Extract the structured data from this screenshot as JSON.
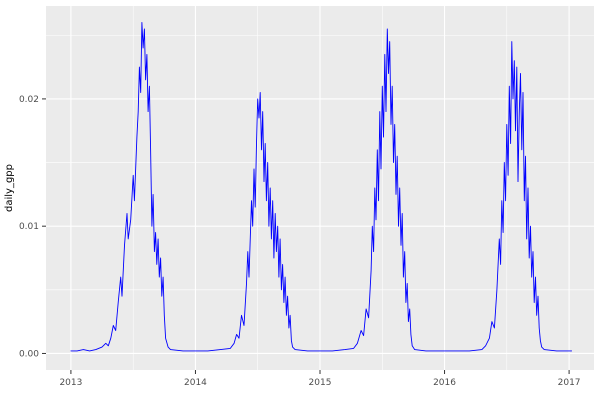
{
  "chart_data": {
    "type": "line",
    "title": "",
    "xlabel": "",
    "ylabel": "daily_gpp",
    "line_color": "#0000ff",
    "panel_bg": "#ebebeb",
    "grid_color": "#ffffff",
    "tick_color": "#333333",
    "label_color": "#4d4d4d",
    "legend": "none",
    "xlim": [
      2012.8,
      2017.2
    ],
    "ylim": [
      -0.0013,
      0.0273
    ],
    "x_ticks": [
      2013,
      2014,
      2015,
      2016,
      2017
    ],
    "x_tick_labels": [
      "2013",
      "2014",
      "2015",
      "2016",
      "2017"
    ],
    "x_minor": [
      2013.5,
      2014.5,
      2015.5,
      2016.5
    ],
    "y_ticks": [
      0.0,
      0.01,
      0.02
    ],
    "y_tick_labels": [
      "0.00",
      "0.01",
      "0.02"
    ],
    "y_minor": [
      0.005,
      0.015,
      0.025
    ],
    "series": [
      {
        "name": "daily_gpp",
        "points": [
          [
            2013.0,
            0.0002
          ],
          [
            2013.05,
            0.0002
          ],
          [
            2013.1,
            0.0003
          ],
          [
            2013.15,
            0.0002
          ],
          [
            2013.2,
            0.0003
          ],
          [
            2013.25,
            0.0005
          ],
          [
            2013.28,
            0.0008
          ],
          [
            2013.3,
            0.0006
          ],
          [
            2013.32,
            0.0012
          ],
          [
            2013.34,
            0.0022
          ],
          [
            2013.36,
            0.0018
          ],
          [
            2013.38,
            0.004
          ],
          [
            2013.4,
            0.006
          ],
          [
            2013.41,
            0.0045
          ],
          [
            2013.43,
            0.0085
          ],
          [
            2013.45,
            0.011
          ],
          [
            2013.46,
            0.009
          ],
          [
            2013.48,
            0.0105
          ],
          [
            2013.5,
            0.014
          ],
          [
            2013.51,
            0.012
          ],
          [
            2013.53,
            0.017
          ],
          [
            2013.54,
            0.019
          ],
          [
            2013.55,
            0.0225
          ],
          [
            2013.56,
            0.0205
          ],
          [
            2013.57,
            0.026
          ],
          [
            2013.58,
            0.024
          ],
          [
            2013.59,
            0.0255
          ],
          [
            2013.6,
            0.0215
          ],
          [
            2013.61,
            0.0235
          ],
          [
            2013.62,
            0.019
          ],
          [
            2013.63,
            0.021
          ],
          [
            2013.64,
            0.016
          ],
          [
            2013.65,
            0.01
          ],
          [
            2013.66,
            0.0125
          ],
          [
            2013.67,
            0.008
          ],
          [
            2013.68,
            0.0095
          ],
          [
            2013.69,
            0.007
          ],
          [
            2013.7,
            0.009
          ],
          [
            2013.71,
            0.006
          ],
          [
            2013.72,
            0.0075
          ],
          [
            2013.73,
            0.0045
          ],
          [
            2013.74,
            0.006
          ],
          [
            2013.75,
            0.003
          ],
          [
            2013.76,
            0.0012
          ],
          [
            2013.78,
            0.0005
          ],
          [
            2013.8,
            0.0003
          ],
          [
            2013.9,
            0.0002
          ],
          [
            2014.0,
            0.0002
          ],
          [
            2014.1,
            0.0002
          ],
          [
            2014.2,
            0.0003
          ],
          [
            2014.28,
            0.0004
          ],
          [
            2014.31,
            0.0008
          ],
          [
            2014.33,
            0.0015
          ],
          [
            2014.35,
            0.0012
          ],
          [
            2014.37,
            0.003
          ],
          [
            2014.39,
            0.0022
          ],
          [
            2014.41,
            0.0055
          ],
          [
            2014.42,
            0.008
          ],
          [
            2014.43,
            0.006
          ],
          [
            2014.45,
            0.012
          ],
          [
            2014.46,
            0.01
          ],
          [
            2014.47,
            0.0145
          ],
          [
            2014.48,
            0.0115
          ],
          [
            2014.49,
            0.0165
          ],
          [
            2014.5,
            0.02
          ],
          [
            2014.51,
            0.0185
          ],
          [
            2014.52,
            0.0205
          ],
          [
            2014.53,
            0.016
          ],
          [
            2014.54,
            0.019
          ],
          [
            2014.55,
            0.0135
          ],
          [
            2014.56,
            0.0165
          ],
          [
            2014.57,
            0.012
          ],
          [
            2014.58,
            0.015
          ],
          [
            2014.59,
            0.01
          ],
          [
            2014.6,
            0.013
          ],
          [
            2014.61,
            0.009
          ],
          [
            2014.62,
            0.012
          ],
          [
            2014.63,
            0.0075
          ],
          [
            2014.64,
            0.011
          ],
          [
            2014.65,
            0.008
          ],
          [
            2014.66,
            0.01
          ],
          [
            2014.67,
            0.006
          ],
          [
            2014.68,
            0.009
          ],
          [
            2014.69,
            0.005
          ],
          [
            2014.7,
            0.007
          ],
          [
            2014.71,
            0.004
          ],
          [
            2014.72,
            0.006
          ],
          [
            2014.73,
            0.003
          ],
          [
            2014.74,
            0.0045
          ],
          [
            2014.75,
            0.002
          ],
          [
            2014.76,
            0.003
          ],
          [
            2014.77,
            0.001
          ],
          [
            2014.78,
            0.0005
          ],
          [
            2014.8,
            0.0003
          ],
          [
            2014.9,
            0.0002
          ],
          [
            2015.0,
            0.0002
          ],
          [
            2015.1,
            0.0002
          ],
          [
            2015.2,
            0.0003
          ],
          [
            2015.27,
            0.0004
          ],
          [
            2015.3,
            0.0008
          ],
          [
            2015.33,
            0.0018
          ],
          [
            2015.35,
            0.0014
          ],
          [
            2015.37,
            0.0035
          ],
          [
            2015.39,
            0.0028
          ],
          [
            2015.41,
            0.0065
          ],
          [
            2015.42,
            0.01
          ],
          [
            2015.43,
            0.008
          ],
          [
            2015.44,
            0.013
          ],
          [
            2015.45,
            0.0105
          ],
          [
            2015.46,
            0.016
          ],
          [
            2015.47,
            0.012
          ],
          [
            2015.48,
            0.019
          ],
          [
            2015.49,
            0.0145
          ],
          [
            2015.5,
            0.021
          ],
          [
            2015.51,
            0.017
          ],
          [
            2015.52,
            0.0235
          ],
          [
            2015.53,
            0.019
          ],
          [
            2015.54,
            0.0255
          ],
          [
            2015.55,
            0.022
          ],
          [
            2015.56,
            0.0245
          ],
          [
            2015.57,
            0.018
          ],
          [
            2015.58,
            0.021
          ],
          [
            2015.59,
            0.015
          ],
          [
            2015.6,
            0.018
          ],
          [
            2015.61,
            0.0125
          ],
          [
            2015.62,
            0.0155
          ],
          [
            2015.63,
            0.01
          ],
          [
            2015.64,
            0.013
          ],
          [
            2015.65,
            0.0085
          ],
          [
            2015.66,
            0.011
          ],
          [
            2015.67,
            0.006
          ],
          [
            2015.68,
            0.008
          ],
          [
            2015.69,
            0.004
          ],
          [
            2015.7,
            0.0055
          ],
          [
            2015.71,
            0.0025
          ],
          [
            2015.72,
            0.0035
          ],
          [
            2015.73,
            0.0015
          ],
          [
            2015.74,
            0.0006
          ],
          [
            2015.76,
            0.0003
          ],
          [
            2015.85,
            0.0002
          ],
          [
            2016.0,
            0.0002
          ],
          [
            2016.1,
            0.0002
          ],
          [
            2016.2,
            0.0002
          ],
          [
            2016.3,
            0.0003
          ],
          [
            2016.33,
            0.0006
          ],
          [
            2016.36,
            0.0012
          ],
          [
            2016.38,
            0.0025
          ],
          [
            2016.4,
            0.002
          ],
          [
            2016.42,
            0.005
          ],
          [
            2016.44,
            0.009
          ],
          [
            2016.45,
            0.007
          ],
          [
            2016.46,
            0.012
          ],
          [
            2016.47,
            0.0095
          ],
          [
            2016.48,
            0.015
          ],
          [
            2016.49,
            0.012
          ],
          [
            2016.5,
            0.018
          ],
          [
            2016.51,
            0.014
          ],
          [
            2016.52,
            0.021
          ],
          [
            2016.53,
            0.0165
          ],
          [
            2016.54,
            0.0245
          ],
          [
            2016.55,
            0.02
          ],
          [
            2016.56,
            0.023
          ],
          [
            2016.57,
            0.0175
          ],
          [
            2016.58,
            0.0225
          ],
          [
            2016.59,
            0.0135
          ],
          [
            2016.6,
            0.019
          ],
          [
            2016.61,
            0.022
          ],
          [
            2016.62,
            0.016
          ],
          [
            2016.63,
            0.0205
          ],
          [
            2016.64,
            0.012
          ],
          [
            2016.65,
            0.0155
          ],
          [
            2016.66,
            0.009
          ],
          [
            2016.67,
            0.013
          ],
          [
            2016.68,
            0.0075
          ],
          [
            2016.69,
            0.01
          ],
          [
            2016.7,
            0.006
          ],
          [
            2016.71,
            0.008
          ],
          [
            2016.72,
            0.004
          ],
          [
            2016.73,
            0.006
          ],
          [
            2016.74,
            0.003
          ],
          [
            2016.75,
            0.0045
          ],
          [
            2016.76,
            0.002
          ],
          [
            2016.77,
            0.001
          ],
          [
            2016.78,
            0.0005
          ],
          [
            2016.8,
            0.0003
          ],
          [
            2016.9,
            0.0002
          ],
          [
            2017.0,
            0.0002
          ],
          [
            2017.02,
            0.0002
          ]
        ]
      }
    ]
  }
}
